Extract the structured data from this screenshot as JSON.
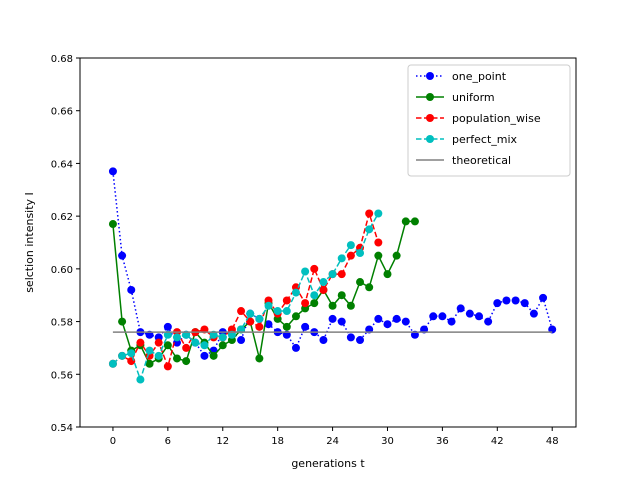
{
  "chart_data": {
    "type": "line",
    "xlabel": "generations t",
    "ylabel": "selction intensity I",
    "xlim": [
      -3.6,
      50.6
    ],
    "ylim": [
      0.54,
      0.68
    ],
    "xticks": [
      0,
      6,
      12,
      18,
      24,
      30,
      36,
      42,
      48
    ],
    "yticks": [
      0.54,
      0.56,
      0.58,
      0.6,
      0.62,
      0.64,
      0.66,
      0.68
    ],
    "ytick_labels": [
      "0.54",
      "0.56",
      "0.58",
      "0.60",
      "0.62",
      "0.64",
      "0.66",
      "0.68"
    ],
    "xtick_labels": [
      "0",
      "6",
      "12",
      "18",
      "24",
      "30",
      "36",
      "42",
      "48"
    ],
    "grid": false,
    "legend_position": "top-right",
    "series": [
      {
        "name": "one_point",
        "color": "#0000ff",
        "linestyle": "dotted",
        "marker": "circle",
        "x": [
          0,
          1,
          2,
          3,
          4,
          5,
          6,
          7,
          8,
          9,
          10,
          11,
          12,
          13,
          14,
          15,
          16,
          17,
          18,
          19,
          20,
          21,
          22,
          23,
          24,
          25,
          26,
          27,
          28,
          29,
          30,
          31,
          32,
          33,
          34,
          35,
          36,
          37,
          38,
          39,
          40,
          41,
          42,
          43,
          44,
          45,
          46,
          47,
          48
        ],
        "y": [
          0.637,
          0.605,
          0.592,
          0.576,
          0.575,
          0.574,
          0.578,
          0.572,
          0.575,
          0.572,
          0.567,
          0.569,
          0.576,
          0.576,
          0.573,
          0.583,
          0.581,
          0.579,
          0.576,
          0.575,
          0.57,
          0.578,
          0.576,
          0.573,
          0.581,
          0.58,
          0.574,
          0.573,
          0.577,
          0.581,
          0.579,
          0.581,
          0.58,
          0.575,
          0.577,
          0.582,
          0.582,
          0.58,
          0.585,
          0.583,
          0.582,
          0.58,
          0.587,
          0.588,
          0.588,
          0.587,
          0.583,
          0.589,
          0.577
        ]
      },
      {
        "name": "uniform",
        "color": "#008000",
        "linestyle": "solid",
        "marker": "circle",
        "x": [
          0,
          1,
          2,
          3,
          4,
          5,
          6,
          7,
          8,
          9,
          10,
          11,
          12,
          13,
          14,
          15,
          16,
          17,
          18,
          19,
          20,
          21,
          22,
          23,
          24,
          25,
          26,
          27,
          28,
          29,
          30,
          31,
          32,
          33
        ],
        "y": [
          0.617,
          0.58,
          0.569,
          0.571,
          0.564,
          0.566,
          0.571,
          0.566,
          0.565,
          0.576,
          0.572,
          0.567,
          0.571,
          0.573,
          0.577,
          0.58,
          0.566,
          0.587,
          0.581,
          0.578,
          0.582,
          0.585,
          0.587,
          0.592,
          0.586,
          0.59,
          0.586,
          0.595,
          0.593,
          0.605,
          0.598,
          0.605,
          0.618,
          0.618
        ]
      },
      {
        "name": "population_wise",
        "color": "#ff0000",
        "linestyle": "dashed",
        "marker": "circle",
        "x": [
          0,
          1,
          2,
          3,
          4,
          5,
          6,
          7,
          8,
          9,
          10,
          11,
          12,
          13,
          14,
          15,
          16,
          17,
          18,
          19,
          20,
          21,
          22,
          23,
          24,
          25,
          26,
          27,
          28,
          29
        ],
        "y": [
          0.564,
          0.567,
          0.565,
          0.572,
          0.567,
          0.572,
          0.563,
          0.576,
          0.57,
          0.576,
          0.577,
          0.574,
          0.574,
          0.577,
          0.584,
          0.58,
          0.578,
          0.588,
          0.583,
          0.588,
          0.593,
          0.587,
          0.6,
          0.592,
          0.598,
          0.598,
          0.605,
          0.608,
          0.621,
          0.61
        ]
      },
      {
        "name": "perfect_mix",
        "color": "#00bfbf",
        "linestyle": "dashed",
        "marker": "circle",
        "x": [
          0,
          1,
          2,
          3,
          4,
          5,
          6,
          7,
          8,
          9,
          10,
          11,
          12,
          13,
          14,
          15,
          16,
          17,
          18,
          19,
          20,
          21,
          22,
          23,
          24,
          25,
          26,
          27,
          28,
          29
        ],
        "y": [
          0.564,
          0.567,
          0.568,
          0.558,
          0.569,
          0.567,
          0.575,
          0.574,
          0.575,
          0.572,
          0.571,
          0.575,
          0.574,
          0.575,
          0.577,
          0.583,
          0.581,
          0.586,
          0.584,
          0.584,
          0.591,
          0.599,
          0.59,
          0.595,
          0.598,
          0.604,
          0.609,
          0.606,
          0.615,
          0.621
        ]
      },
      {
        "name": "theoretical",
        "color": "#808080",
        "linestyle": "solid",
        "marker": "none",
        "x": [
          0,
          48
        ],
        "y": [
          0.576,
          0.576
        ]
      }
    ]
  }
}
